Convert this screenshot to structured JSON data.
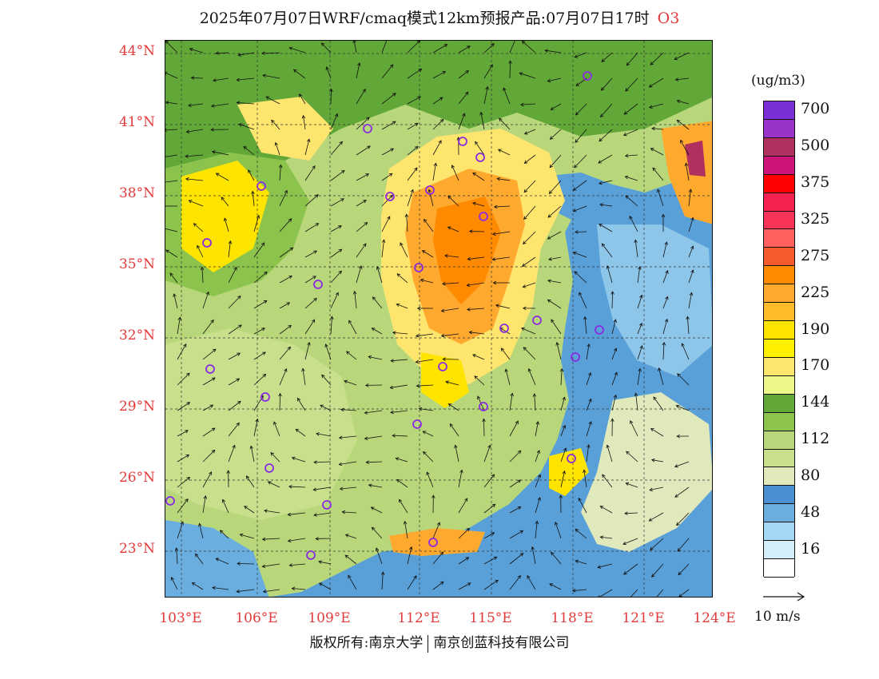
{
  "title": {
    "main": "2025年07月07日WRF/cmaq模式12km预报产品:07月07日17时",
    "species": "O3"
  },
  "map": {
    "lat_labels": [
      "44°N",
      "41°N",
      "38°N",
      "35°N",
      "32°N",
      "29°N",
      "26°N",
      "23°N"
    ],
    "lon_labels": [
      "103°E",
      "106°E",
      "109°E",
      "112°E",
      "115°E",
      "118°E",
      "121°E",
      "124°E"
    ],
    "station_marker_color": "#8a2be2",
    "sea_color": "#5aa0d8",
    "land_color": "#b8d77a"
  },
  "legend": {
    "unit": "(ug/m3)",
    "levels": [
      {
        "color": "#7b2fd6",
        "label": "700"
      },
      {
        "color": "#9a33c9",
        "label": ""
      },
      {
        "color": "#b0305f",
        "label": "500"
      },
      {
        "color": "#cc1479",
        "label": ""
      },
      {
        "color": "#ff0000",
        "label": "375"
      },
      {
        "color": "#f52150",
        "label": ""
      },
      {
        "color": "#f7335a",
        "label": "325"
      },
      {
        "color": "#ff6060",
        "label": ""
      },
      {
        "color": "#f55a2e",
        "label": "275"
      },
      {
        "color": "#ff8a00",
        "label": ""
      },
      {
        "color": "#ffa92e",
        "label": "225"
      },
      {
        "color": "#ffbb2a",
        "label": ""
      },
      {
        "color": "#ffe400",
        "label": "190"
      },
      {
        "color": "#fff000",
        "label": ""
      },
      {
        "color": "#fde56e",
        "label": "170"
      },
      {
        "color": "#eef88a",
        "label": ""
      },
      {
        "color": "#62a838",
        "label": "144"
      },
      {
        "color": "#8cc34c",
        "label": ""
      },
      {
        "color": "#b8d77a",
        "label": "112"
      },
      {
        "color": "#c8df8c",
        "label": ""
      },
      {
        "color": "#e0e9bc",
        "label": "80"
      },
      {
        "color": "#4a8fcf",
        "label": ""
      },
      {
        "color": "#6aaee0",
        "label": "48"
      },
      {
        "color": "#a4d8f4",
        "label": ""
      },
      {
        "color": "#d4eef9",
        "label": "16"
      },
      {
        "color": "#ffffff",
        "label": ""
      }
    ],
    "reference_vector": "10 m/s"
  },
  "footer": {
    "copyright_left": "版权所有:南京大学",
    "copyright_right": "南京创蓝科技有限公司"
  }
}
